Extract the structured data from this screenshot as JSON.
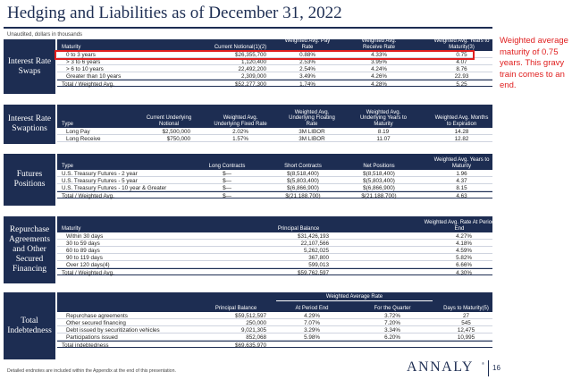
{
  "title": "Hedging and Liabilities as of December 31, 2022",
  "subtitle": "Unaudited, dollars in thousands",
  "annotation": "Weighted average maturity of 0.75 years. This gravy train comes to an end.",
  "footer": {
    "note": "Detailed endnotes are included within the Appendix at the end of this presentation.",
    "logo": "ANNALY",
    "logo_mark": "®",
    "page": "16"
  },
  "swaps": {
    "label": "Interest Rate Swaps",
    "headers": [
      "Maturity",
      "Current Notional(1)(2)",
      "Weighted Avg. Pay Rate",
      "Weighted Avg. Receive Rate",
      "Weighted Avg. Years to Maturity(3)"
    ],
    "rows": [
      [
        "0 to 3 years",
        "$26,355,700",
        "0.88%",
        "4.33%",
        "0.75"
      ],
      [
        "> 3 to 6 years",
        "1,120,400",
        "2.53%",
        "3.95%",
        "4.07"
      ],
      [
        "> 6 to 10 years",
        "22,492,200",
        "2.54%",
        "4.24%",
        "8.76"
      ],
      [
        "Greater than 10 years",
        "2,309,000",
        "3.49%",
        "4.26%",
        "22.93"
      ]
    ],
    "total": [
      "Total / Weighted Avg.",
      "$52,277,300",
      "1.74%",
      "4.28%",
      "5.25"
    ]
  },
  "swaptions": {
    "label": "Interest Rate Swaptions",
    "headers": [
      "Type",
      "Current Underlying Notional",
      "Weighted Avg. Underlying Fixed Rate",
      "Weighted Avg. Underlying Floating Rate",
      "Weighted Avg. Underlying Years to Maturity",
      "Weighted Avg. Months to Expiration"
    ],
    "rows": [
      [
        "Long Pay",
        "$2,500,000",
        "2.02%",
        "3M LIBOR",
        "8.19",
        "14.28"
      ],
      [
        "Long Receive",
        "$750,000",
        "1.57%",
        "3M LIBOR",
        "11.07",
        "12.82"
      ]
    ]
  },
  "futures": {
    "label": "Futures Positions",
    "headers": [
      "Type",
      "Long Contracts",
      "Short Contracts",
      "Net Positions",
      "Weighted Avg. Years to Maturity"
    ],
    "rows": [
      [
        "U.S. Treasury Futures - 2 year",
        "$—",
        "$(8,518,400)",
        "$(8,518,400)",
        "1.96"
      ],
      [
        "U.S. Treasury Futures - 5 year",
        "$—",
        "$(5,803,400)",
        "$(5,803,400)",
        "4.37"
      ],
      [
        "U.S. Treasury Futures - 10 year & Greater",
        "$—",
        "$(6,866,900)",
        "$(6,866,900)",
        "8.15"
      ]
    ],
    "total": [
      "Total / Weighted Avg.",
      "$—",
      "$(21,188,700)",
      "$(21,188,700)",
      "4.63"
    ]
  },
  "repo": {
    "label": "Repurchase Agreements and Other Secured Financing",
    "headers": [
      "Maturity",
      "Principal Balance",
      "Weighted Avg. Rate At Period End"
    ],
    "rows": [
      [
        "Within 30 days",
        "$31,426,193",
        "4.27%"
      ],
      [
        "30 to 59 days",
        "22,107,566",
        "4.18%"
      ],
      [
        "60 to 89 days",
        "5,262,025",
        "4.59%"
      ],
      [
        "90 to 119 days",
        "367,800",
        "5.82%"
      ],
      [
        "Over 120 days(4)",
        "599,013",
        "6.66%"
      ]
    ],
    "total": [
      "Total / Weighted Avg.",
      "$59,762,597",
      "4.30%"
    ]
  },
  "indebtedness": {
    "label": "Total Indebtedness",
    "group_header": "Weighted Average Rate",
    "headers": [
      "",
      "Principal Balance",
      "At Period End",
      "For the Quarter",
      "Days to Maturity(5)"
    ],
    "rows": [
      [
        "Repurchase agreements",
        "$59,512,597",
        "4.29%",
        "3.72%",
        "27"
      ],
      [
        "Other secured financing",
        "250,000",
        "7.07%",
        "7.20%",
        "545"
      ],
      [
        "Debt issued by securitization vehicles",
        "9,021,305",
        "3.29%",
        "3.34%",
        "12,475"
      ],
      [
        "Participations issued",
        "852,068",
        "5.98%",
        "6.20%",
        "10,995"
      ]
    ],
    "total": [
      "Total indebtedness",
      "$69,635,970",
      "",
      "",
      ""
    ]
  }
}
